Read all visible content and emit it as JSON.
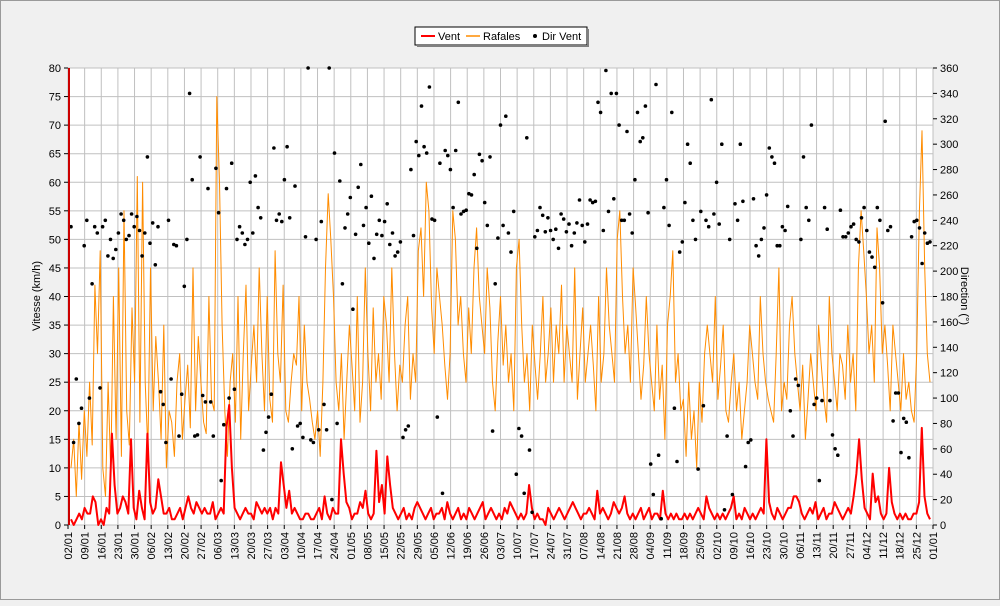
{
  "chart_data": {
    "type": "line",
    "legend": {
      "position": "top-center",
      "entries": [
        {
          "label": "Vent",
          "color": "#ff0000",
          "kind": "line"
        },
        {
          "label": "Rafales",
          "color": "#ff8c00",
          "kind": "line"
        },
        {
          "label": "Dir Vent",
          "color": "#000000",
          "kind": "point"
        }
      ]
    },
    "y_left": {
      "label": "Vitesse (km/h)",
      "ylim": [
        0,
        80
      ],
      "ticks": [
        "0",
        "5",
        "10",
        "15",
        "20",
        "25",
        "30",
        "35",
        "40",
        "45",
        "50",
        "55",
        "60",
        "65",
        "70",
        "75",
        "80"
      ]
    },
    "y_right": {
      "label": "Direction (°)",
      "ylim": [
        0,
        360
      ],
      "ticks": [
        "0",
        "20",
        "40",
        "60",
        "80",
        "100",
        "120",
        "140",
        "160",
        "180",
        "200",
        "220",
        "240",
        "260",
        "280",
        "300",
        "320",
        "340",
        "360"
      ]
    },
    "x_ticks": [
      "02/01",
      "09/01",
      "16/01",
      "23/01",
      "30/01",
      "06/02",
      "13/02",
      "20/02",
      "27/02",
      "06/03",
      "13/03",
      "20/03",
      "27/03",
      "03/04",
      "10/04",
      "17/04",
      "24/04",
      "01/05",
      "08/05",
      "15/05",
      "22/05",
      "29/05",
      "05/06",
      "12/06",
      "19/06",
      "26/06",
      "03/07",
      "10/07",
      "17/07",
      "24/07",
      "31/07",
      "07/08",
      "14/08",
      "21/08",
      "28/08",
      "04/09",
      "11/09",
      "18/09",
      "25/09",
      "02/10",
      "09/10",
      "16/10",
      "23/10",
      "30/10",
      "06/11",
      "13/11",
      "20/11",
      "27/11",
      "04/12",
      "11/12",
      "18/12",
      "25/12",
      "01/01"
    ],
    "grid": true,
    "series": [
      {
        "name": "Vent",
        "color": "#ff0000",
        "values": [
          1,
          0,
          1,
          2,
          1,
          3,
          2,
          2,
          5,
          4,
          0,
          1,
          0,
          3,
          2,
          16,
          7,
          2,
          3,
          5,
          4,
          2,
          15,
          3,
          1,
          6,
          3,
          1,
          16,
          4,
          2,
          3,
          8,
          5,
          2,
          2,
          3,
          1,
          1,
          2,
          3,
          1,
          3,
          5,
          3,
          2,
          4,
          3,
          2,
          3,
          2,
          2,
          4,
          1,
          2,
          3,
          2,
          17,
          21,
          10,
          3,
          2,
          1,
          2,
          3,
          2,
          2,
          1,
          4,
          3,
          2,
          3,
          2,
          3,
          1,
          3,
          2,
          11,
          7,
          3,
          6,
          2,
          3,
          2,
          1,
          1,
          2,
          2,
          1,
          1,
          2,
          3,
          1,
          5,
          2,
          1,
          3,
          2,
          2,
          15,
          9,
          4,
          3,
          1,
          2,
          2,
          4,
          3,
          6,
          2,
          1,
          2,
          13,
          4,
          7,
          2,
          12,
          7,
          3,
          2,
          1,
          2,
          3,
          1,
          2,
          1,
          3,
          4,
          3,
          2,
          1,
          2,
          3,
          1,
          2,
          2,
          3,
          1,
          4,
          2,
          1,
          2,
          3,
          1,
          2,
          1,
          3,
          2,
          1,
          2,
          3,
          4,
          1,
          2,
          3,
          2,
          1,
          2,
          1,
          3,
          2,
          4,
          3,
          2,
          1,
          2,
          1,
          2,
          7,
          3,
          1,
          2,
          1,
          1,
          0,
          3,
          2,
          1,
          2,
          3,
          2,
          1,
          2,
          3,
          4,
          3,
          2,
          1,
          2,
          2,
          3,
          2,
          1,
          6,
          2,
          3,
          2,
          1,
          2,
          4,
          3,
          2,
          3,
          5,
          2,
          1,
          2,
          1,
          2,
          3,
          1,
          2,
          3,
          1,
          2,
          2,
          1,
          6,
          2,
          1,
          2,
          1,
          2,
          1,
          1,
          2,
          1,
          2,
          1,
          2,
          3,
          2,
          1,
          5,
          3,
          2,
          1,
          2,
          1,
          2,
          1,
          2,
          3,
          5,
          1,
          2,
          1,
          3,
          2,
          1,
          2,
          1,
          2,
          3,
          2,
          15,
          4,
          2,
          1,
          3,
          2,
          1,
          2,
          3,
          3,
          5,
          5,
          4,
          2,
          1,
          2,
          3,
          2,
          4,
          1,
          2,
          3,
          1,
          2,
          2,
          4,
          3,
          2,
          1,
          2,
          3,
          2,
          5,
          9,
          15,
          8,
          3,
          2,
          1,
          9,
          4,
          5,
          2,
          1,
          2,
          10,
          4,
          2,
          1,
          2,
          1,
          2,
          1,
          1,
          2,
          2,
          4,
          17,
          5,
          2,
          1
        ]
      },
      {
        "name": "Rafales",
        "color": "#ff8c00",
        "values": [
          10,
          15,
          5,
          18,
          8,
          20,
          12,
          25,
          14,
          42,
          30,
          48,
          10,
          5,
          25,
          9,
          40,
          15,
          45,
          12,
          55,
          20,
          14,
          38,
          25,
          61,
          18,
          60,
          25,
          13,
          45,
          20,
          33,
          25,
          15,
          35,
          10,
          20,
          18,
          12,
          25,
          30,
          15,
          22,
          28,
          17,
          45,
          20,
          33,
          25,
          18,
          16,
          40,
          22,
          20,
          75,
          60,
          35,
          20,
          12,
          25,
          30,
          18,
          40,
          15,
          30,
          42,
          20,
          28,
          35,
          25,
          45,
          30,
          20,
          40,
          22,
          18,
          48,
          30,
          25,
          42,
          20,
          18,
          25,
          30,
          28,
          40,
          20,
          35,
          25,
          22,
          18,
          15,
          20,
          12,
          25,
          45,
          58,
          50,
          40,
          25,
          20,
          30,
          15,
          25,
          35,
          28,
          20,
          40,
          18,
          25,
          45,
          30,
          20,
          38,
          25,
          30,
          22,
          40,
          35,
          25,
          45,
          30,
          20,
          28,
          25,
          35,
          40,
          22,
          30,
          25,
          48,
          52,
          40,
          60,
          55,
          38,
          30,
          45,
          40,
          35,
          28,
          22,
          30,
          55,
          50,
          35,
          40,
          30,
          25,
          38,
          30,
          45,
          52,
          40,
          35,
          30,
          45,
          38,
          25,
          20,
          32,
          40,
          28,
          35,
          25,
          30,
          20,
          45,
          50,
          35,
          25,
          30,
          20,
          35,
          28,
          22,
          30,
          40,
          25,
          30,
          38,
          25,
          35,
          30,
          42,
          25,
          35,
          30,
          25,
          45,
          22,
          30,
          38,
          25,
          30,
          35,
          28,
          20,
          40,
          25,
          30,
          45,
          35,
          30,
          25,
          50,
          55,
          40,
          30,
          35,
          25,
          45,
          38,
          30,
          22,
          28,
          40,
          30,
          25,
          20,
          35,
          22,
          28,
          15,
          35,
          40,
          48,
          25,
          30,
          20,
          22,
          12,
          25,
          15,
          20,
          10,
          25,
          18,
          30,
          35,
          30,
          25,
          40,
          22,
          28,
          35,
          20,
          18,
          25,
          30,
          20,
          25,
          15,
          20,
          25,
          35,
          30,
          25,
          22,
          40,
          30,
          25,
          22,
          20,
          18,
          30,
          45,
          20,
          25,
          22,
          35,
          40,
          30,
          25,
          20,
          28,
          15,
          22,
          30,
          25,
          20,
          35,
          28,
          22,
          18,
          40,
          30,
          25,
          20,
          30,
          28,
          22,
          35,
          25,
          30,
          20,
          45,
          55,
          48,
          40,
          30,
          35,
          25,
          52,
          45,
          30,
          35,
          28,
          20,
          35,
          30,
          25,
          20,
          30,
          22,
          25,
          20,
          18,
          30,
          55,
          69,
          45,
          30,
          25
        ]
      },
      {
        "name": "Dir Vent",
        "color": "#000000",
        "values": [
          235,
          65,
          115,
          80,
          92,
          220,
          240,
          100,
          190,
          235,
          230,
          108,
          235,
          240,
          212,
          225,
          210,
          217,
          230,
          245,
          240,
          225,
          228,
          245,
          235,
          243,
          232,
          212,
          230,
          290,
          222,
          238,
          205,
          235,
          105,
          95,
          65,
          240,
          115,
          221,
          220,
          70,
          103,
          188,
          225,
          340,
          272,
          70,
          71,
          290,
          102,
          97,
          265,
          97,
          70,
          281,
          246,
          35,
          79,
          265,
          100,
          285,
          107,
          225,
          235,
          230,
          221,
          225,
          270,
          230,
          275,
          250,
          242,
          59,
          73,
          85,
          103,
          297,
          240,
          245,
          239,
          272,
          298,
          242,
          60,
          267,
          78,
          80,
          69,
          227,
          360,
          67,
          65,
          225,
          75,
          239,
          95,
          75,
          360,
          20,
          293,
          80,
          271,
          190,
          234,
          245,
          258,
          170,
          229,
          266,
          284,
          236,
          250,
          222,
          259,
          210,
          229,
          240,
          228,
          239,
          253,
          221,
          230,
          212,
          215,
          223,
          69,
          75,
          78,
          280,
          228,
          302,
          291,
          330,
          298,
          293,
          345,
          241,
          240,
          85,
          285,
          25,
          295,
          291,
          280,
          250,
          295,
          333,
          245,
          247,
          248,
          261,
          260,
          276,
          218,
          292,
          287,
          254,
          236,
          290,
          74,
          190,
          226,
          315,
          236,
          322,
          230,
          215,
          247,
          40,
          76,
          70,
          25,
          305,
          59,
          10,
          227,
          232,
          250,
          244,
          231,
          242,
          232,
          225,
          233,
          218,
          245,
          241,
          231,
          237,
          220,
          230,
          238,
          256,
          236,
          223,
          237,
          256,
          254,
          255,
          333,
          325,
          232,
          358,
          247,
          340,
          257,
          340,
          315,
          240,
          240,
          310,
          245,
          230,
          272,
          325,
          302,
          305,
          330,
          246,
          48,
          24,
          347,
          55,
          5,
          250,
          272,
          236,
          325,
          92,
          50,
          215,
          223,
          254,
          300,
          285,
          240,
          225,
          44,
          247,
          94,
          240,
          235,
          335,
          245,
          270,
          237,
          300,
          12,
          70,
          225,
          24,
          253,
          240,
          300,
          255,
          46,
          65,
          67,
          257,
          220,
          212,
          225,
          234,
          260,
          297,
          290,
          285,
          220,
          220,
          235,
          232,
          251,
          90,
          70,
          115,
          110,
          225,
          290,
          250,
          240,
          315,
          95,
          100,
          35,
          98,
          250,
          233,
          98,
          71,
          60,
          55,
          248,
          227,
          227,
          230,
          235,
          237,
          225,
          223,
          242,
          250,
          232,
          215,
          211,
          203,
          250,
          240,
          175,
          318,
          232,
          235,
          82,
          104,
          104,
          57,
          84,
          81,
          53,
          227,
          239,
          240,
          234,
          206,
          230,
          222,
          223
        ]
      }
    ]
  }
}
